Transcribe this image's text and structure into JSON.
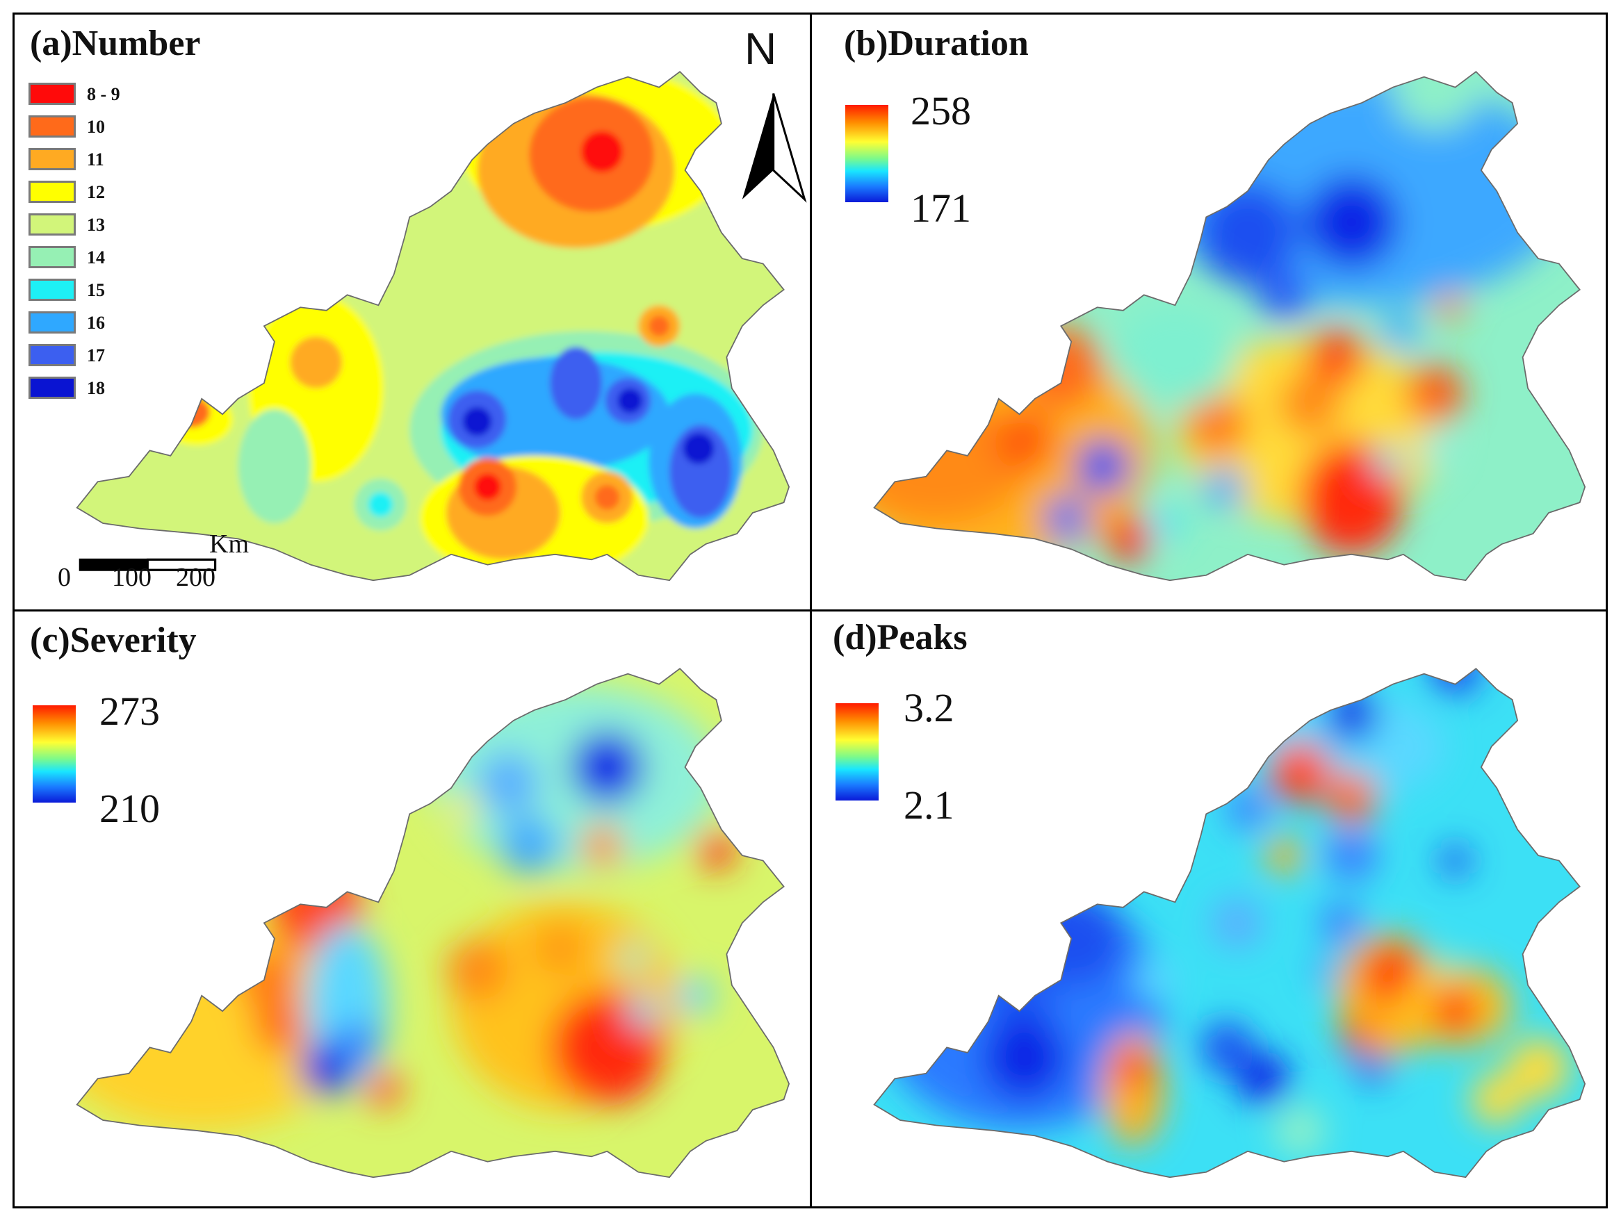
{
  "panels": {
    "a": {
      "title": "(a)Number"
    },
    "b": {
      "title": "(b)Duration",
      "legend_max": "258",
      "legend_min": "171"
    },
    "c": {
      "title": "(c)Severity",
      "legend_max": "273",
      "legend_min": "210"
    },
    "d": {
      "title": "(d)Peaks",
      "legend_max": "3.2",
      "legend_min": "2.1"
    }
  },
  "legend_a": {
    "classes": [
      {
        "label": "8 - 9",
        "color": "#ff0a0a"
      },
      {
        "label": "10",
        "color": "#ff6a1a"
      },
      {
        "label": "11",
        "color": "#ffaa22"
      },
      {
        "label": "12",
        "color": "#ffff00"
      },
      {
        "label": "13",
        "color": "#d2f57a"
      },
      {
        "label": "14",
        "color": "#96f0b4"
      },
      {
        "label": "15",
        "color": "#1ef0f5"
      },
      {
        "label": "16",
        "color": "#2fa8ff"
      },
      {
        "label": "17",
        "color": "#3c5ff0"
      },
      {
        "label": "18",
        "color": "#0a14d2"
      }
    ]
  },
  "north_arrow": {
    "label": "N"
  },
  "scale_bar": {
    "unit": "Km",
    "ticks": [
      "0",
      "100",
      "200"
    ]
  },
  "colors": {
    "frame": "#000000",
    "boundary": "#6b6b6b",
    "background": "#ffffff"
  }
}
